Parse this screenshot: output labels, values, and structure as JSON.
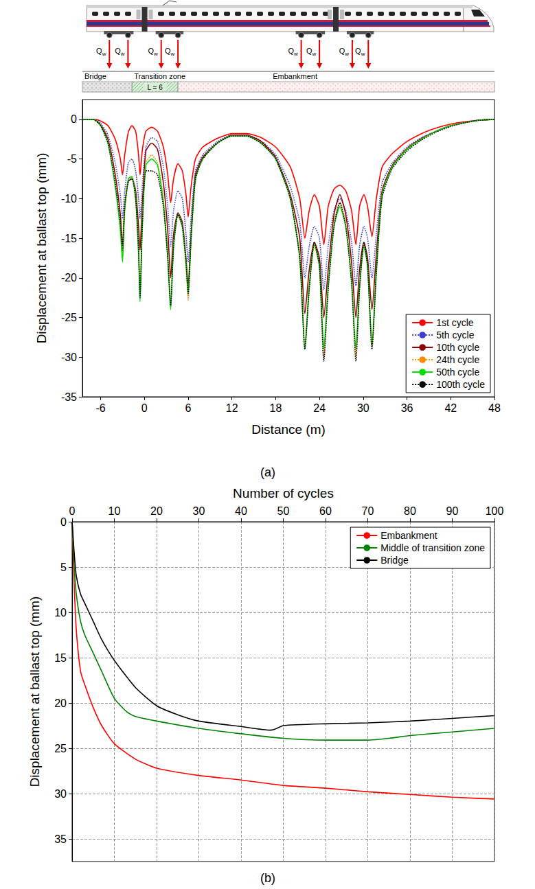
{
  "schematic": {
    "load_label": "Qw",
    "load_positions": [
      -4.8,
      -2.25,
      2.3,
      4.6,
      21.5,
      24.0,
      28.5,
      30.7
    ],
    "zones": [
      {
        "label": "Bridge",
        "from": -8.5,
        "to": -1.7
      },
      {
        "label": "Transition zone",
        "from": -1.7,
        "to": 4.6,
        "length_label": "L = 6"
      },
      {
        "label": "Embankment",
        "from": 4.6,
        "to": 48
      }
    ]
  },
  "chart_data": [
    {
      "type": "line",
      "caption": "(a)",
      "xlabel": "Distance (m)",
      "ylabel": "Displacement at ballast top (mm)",
      "xlim": [
        -8.5,
        48
      ],
      "xticks": [
        -6,
        0,
        6,
        12,
        18,
        24,
        30,
        36,
        42,
        48
      ],
      "ylim": [
        -35,
        2.5
      ],
      "yticks": [
        -35,
        -30,
        -25,
        -20,
        -15,
        -10,
        -5,
        0
      ],
      "grid": false,
      "legend": "bottom right",
      "marker": "none",
      "x": [
        -8.5,
        -7,
        -6,
        -5,
        -4,
        -3.3,
        -3,
        -2.7,
        -2.2,
        -1.7,
        -1.2,
        -0.8,
        -0.6,
        -0.3,
        0.2,
        1,
        1.8,
        2.6,
        3.2,
        3.6,
        4,
        4.6,
        5.2,
        5.7,
        6,
        6.4,
        7,
        8,
        10,
        12,
        14,
        16,
        18,
        20,
        21.3,
        22,
        22.6,
        23.3,
        24,
        24.6,
        25.2,
        26,
        26.8,
        27.6,
        28.4,
        29,
        29.5,
        30.1,
        30.6,
        31.2,
        31.8,
        32.6,
        34,
        36,
        38,
        40,
        42,
        44,
        46,
        48
      ],
      "series": [
        {
          "name": "1st cycle",
          "color": "#ff0000",
          "line_style": "solid",
          "values": [
            0,
            0,
            -0.2,
            -0.8,
            -2.5,
            -5,
            -7,
            -4.5,
            -1.6,
            -0.8,
            -1.5,
            -4.5,
            -7,
            -4,
            -1.5,
            -1,
            -1.5,
            -3.5,
            -7,
            -10.5,
            -7.5,
            -5.6,
            -6.5,
            -9.5,
            -12.3,
            -8.5,
            -5,
            -3.5,
            -2.4,
            -1.8,
            -1.8,
            -2.3,
            -3.5,
            -6,
            -10,
            -15,
            -11.5,
            -9.5,
            -11,
            -15.8,
            -11,
            -8.8,
            -8.3,
            -9,
            -11.5,
            -15.8,
            -11,
            -9.5,
            -11,
            -14.8,
            -10,
            -6,
            -4.3,
            -2.8,
            -1.8,
            -1.1,
            -0.6,
            -0.3,
            -0.1,
            0
          ]
        },
        {
          "name": "5th cycle",
          "color": "#3b3bd6",
          "line_style": "dotted",
          "values": [
            0,
            0,
            -0.5,
            -2,
            -5.5,
            -9.5,
            -12.5,
            -9,
            -5.5,
            -5,
            -6.5,
            -10,
            -12.5,
            -8.5,
            -3.5,
            -2.3,
            -2.8,
            -6,
            -11,
            -16,
            -11.5,
            -9,
            -10,
            -14.5,
            -18,
            -12.5,
            -6.5,
            -4.5,
            -2.8,
            -2,
            -2,
            -2.7,
            -4.5,
            -8.5,
            -13,
            -20,
            -16,
            -13.5,
            -15,
            -21.5,
            -16,
            -11.5,
            -10,
            -11.5,
            -15.5,
            -21,
            -16,
            -13.5,
            -15,
            -20,
            -14.5,
            -8,
            -5.5,
            -3.5,
            -2.3,
            -1.5,
            -0.8,
            -0.4,
            -0.1,
            0
          ]
        },
        {
          "name": "10th cycle",
          "color": "#8b0000",
          "line_style": "solid",
          "values": [
            0,
            0,
            -0.7,
            -2.5,
            -7,
            -12,
            -16,
            -11,
            -7.8,
            -7.5,
            -9,
            -13.5,
            -16.5,
            -11,
            -4,
            -3,
            -3.8,
            -8,
            -14,
            -20,
            -14.5,
            -11.8,
            -13,
            -17.5,
            -21,
            -14.5,
            -7,
            -4.8,
            -3,
            -2,
            -2,
            -2.8,
            -4.8,
            -9.5,
            -15,
            -24.5,
            -19,
            -15.5,
            -17.5,
            -25,
            -19,
            -12,
            -9.5,
            -12,
            -18,
            -25,
            -19,
            -15.5,
            -17.5,
            -24,
            -17,
            -9,
            -5.8,
            -3.7,
            -2.4,
            -1.5,
            -0.8,
            -0.4,
            -0.1,
            0
          ]
        },
        {
          "name": "24th cycle",
          "color": "#ff8c00",
          "line_style": "dotted",
          "values": [
            0,
            0,
            -0.8,
            -2.8,
            -8,
            -13,
            -17,
            -11,
            -7.5,
            -7.3,
            -9.5,
            -16,
            -22,
            -13,
            -5.5,
            -4.5,
            -5.5,
            -10,
            -17,
            -23,
            -15.5,
            -12,
            -13.5,
            -18.5,
            -22.8,
            -15,
            -7.5,
            -5,
            -3,
            -2.1,
            -2.1,
            -3,
            -5,
            -10,
            -17,
            -28.5,
            -21,
            -16,
            -18.5,
            -30,
            -21,
            -13,
            -10.5,
            -13,
            -20,
            -30,
            -21,
            -16,
            -18.5,
            -28.5,
            -19,
            -9.5,
            -6,
            -3.8,
            -2.5,
            -1.5,
            -0.8,
            -0.4,
            -0.1,
            0
          ]
        },
        {
          "name": "50th cycle",
          "color": "#00dd00",
          "line_style": "solid",
          "values": [
            0,
            0,
            -0.8,
            -3,
            -8.5,
            -14,
            -18,
            -11.5,
            -7.5,
            -7.2,
            -10,
            -17,
            -23,
            -13.5,
            -5.8,
            -5,
            -5.8,
            -10.5,
            -17.5,
            -24,
            -16,
            -12,
            -13.5,
            -18,
            -22,
            -15,
            -7.5,
            -5,
            -3,
            -2.1,
            -2.1,
            -3,
            -5,
            -10,
            -17.5,
            -29,
            -21,
            -15.8,
            -18.5,
            -29,
            -21,
            -13.5,
            -11,
            -13.5,
            -20.5,
            -29,
            -21,
            -16,
            -18.5,
            -28.5,
            -19,
            -9.5,
            -6,
            -3.8,
            -2.5,
            -1.5,
            -0.8,
            -0.4,
            -0.1,
            0
          ]
        },
        {
          "name": "100th cycle",
          "color": "#000000",
          "line_style": "dotted",
          "values": [
            0,
            0,
            -0.8,
            -3,
            -8,
            -13,
            -16.5,
            -11,
            -7.8,
            -7.5,
            -10,
            -16.5,
            -22.5,
            -14,
            -6.5,
            -6.5,
            -7,
            -11,
            -17.5,
            -23.5,
            -16,
            -12,
            -13.5,
            -18,
            -22,
            -15,
            -7.5,
            -5,
            -3,
            -2.1,
            -2.1,
            -3,
            -5,
            -10,
            -17.5,
            -29,
            -21.5,
            -15.5,
            -18.5,
            -30.5,
            -21.5,
            -13.5,
            -10.5,
            -13.5,
            -20.5,
            -30.5,
            -21.5,
            -15.5,
            -18.5,
            -29,
            -19.5,
            -9.8,
            -6.2,
            -4,
            -2.6,
            -1.6,
            -0.9,
            -0.4,
            -0.1,
            0
          ]
        }
      ]
    },
    {
      "type": "line",
      "caption": "(b)",
      "xlabel": "Number of cycles",
      "ylabel": "Displacement at ballast top (mm)",
      "xlim": [
        0,
        100
      ],
      "xticks": [
        0,
        10,
        20,
        30,
        40,
        50,
        60,
        70,
        80,
        90,
        100
      ],
      "ylim": [
        37.5,
        0
      ],
      "yticks": [
        0,
        5,
        10,
        15,
        20,
        25,
        30,
        35
      ],
      "grid": true,
      "legend": "top right",
      "marker": "none",
      "series": [
        {
          "name": "Embankment",
          "color": "#ff0000",
          "line_style": "solid",
          "x": [
            0,
            0.5,
            1,
            2,
            3,
            5,
            7,
            10,
            15,
            20,
            30,
            40,
            50,
            60,
            70,
            80,
            90,
            100
          ],
          "values": [
            0,
            7,
            12,
            16.5,
            18,
            20.5,
            22.5,
            24.5,
            26.2,
            27.2,
            28,
            28.5,
            29.1,
            29.4,
            29.8,
            30.1,
            30.4,
            30.6
          ]
        },
        {
          "name": "Middle of transition zone",
          "color": "#008000",
          "line_style": "solid",
          "x": [
            0,
            0.5,
            1,
            2,
            3,
            5,
            7,
            10,
            13,
            15,
            20,
            30,
            40,
            50,
            60,
            70,
            75,
            80,
            90,
            100
          ],
          "values": [
            0,
            5,
            8,
            11,
            12.5,
            14.5,
            16.5,
            19.5,
            21,
            21.5,
            22,
            22.8,
            23.4,
            23.9,
            24.1,
            24.1,
            23.9,
            23.6,
            23.2,
            22.8
          ]
        },
        {
          "name": "Bridge",
          "color": "#000000",
          "line_style": "solid",
          "x": [
            0,
            0.5,
            1,
            2,
            3,
            5,
            7,
            10,
            15,
            20,
            25,
            30,
            40,
            47,
            48,
            50,
            60,
            70,
            80,
            90,
            100
          ],
          "values": [
            0,
            3.5,
            6,
            8,
            9,
            11,
            13,
            15.3,
            18.3,
            20.3,
            21.3,
            22,
            22.6,
            23,
            22.9,
            22.5,
            22.3,
            22.2,
            22,
            21.7,
            21.4
          ]
        }
      ]
    }
  ]
}
